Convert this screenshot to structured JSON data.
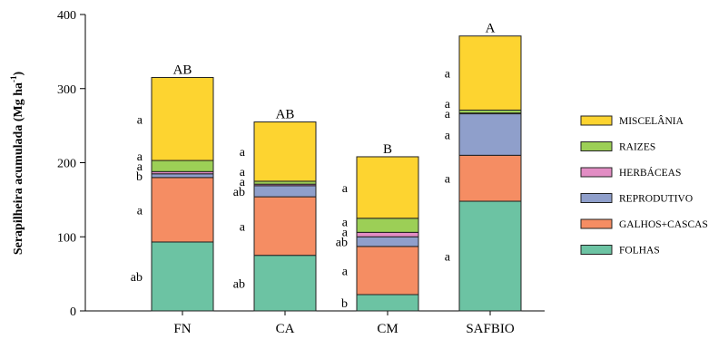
{
  "chart_data": {
    "type": "bar",
    "stacked": true,
    "title": "",
    "xlabel": "",
    "ylabel": "Serapilheira acumulada (Mg ha",
    "ylabel_sup": "-1",
    "ylabel_close": ")",
    "ylim": [
      0,
      400
    ],
    "yticks": [
      "0",
      "100",
      "200",
      "300",
      "400"
    ],
    "categories": [
      "FN",
      "CA",
      "CM",
      "SAFBIO"
    ],
    "totals_labels": [
      "AB",
      "AB",
      "B",
      "A"
    ],
    "series": [
      {
        "name": "FOLHAS",
        "color": "#6cc3a3",
        "values": [
          93,
          75,
          22,
          148
        ],
        "letters": [
          "ab",
          "ab",
          "b",
          "a"
        ]
      },
      {
        "name": "GALHOS+CASCAS",
        "color": "#f58d63",
        "values": [
          87,
          79,
          65,
          62
        ],
        "letters": [
          "a",
          "a",
          "a",
          "a"
        ]
      },
      {
        "name": "REPRODUTIVO",
        "color": "#8f9fcb",
        "values": [
          5,
          15,
          13,
          56
        ],
        "letters": [
          "b",
          "ab",
          "ab",
          "a"
        ]
      },
      {
        "name": "HERBÁCEAS",
        "color": "#e28dc4",
        "values": [
          3,
          2,
          6,
          1
        ],
        "letters": [
          "a",
          "a",
          "a",
          "a"
        ]
      },
      {
        "name": "RAIZES",
        "color": "#9ccf56",
        "values": [
          15,
          4,
          19,
          4
        ],
        "letters": [
          "a",
          "a",
          "a",
          "a"
        ]
      },
      {
        "name": "MISCELÂNIA",
        "color": "#fdd430",
        "values": [
          112,
          80,
          83,
          100
        ],
        "letters": [
          "a",
          "a",
          "a",
          "a"
        ]
      }
    ],
    "legend_order": [
      "MISCELÂNIA",
      "RAIZES",
      "HERBÁCEAS",
      "REPRODUTIVO",
      "GALHOS+CASCAS",
      "FOLHAS"
    ],
    "legend_position": "right",
    "grid": false
  }
}
